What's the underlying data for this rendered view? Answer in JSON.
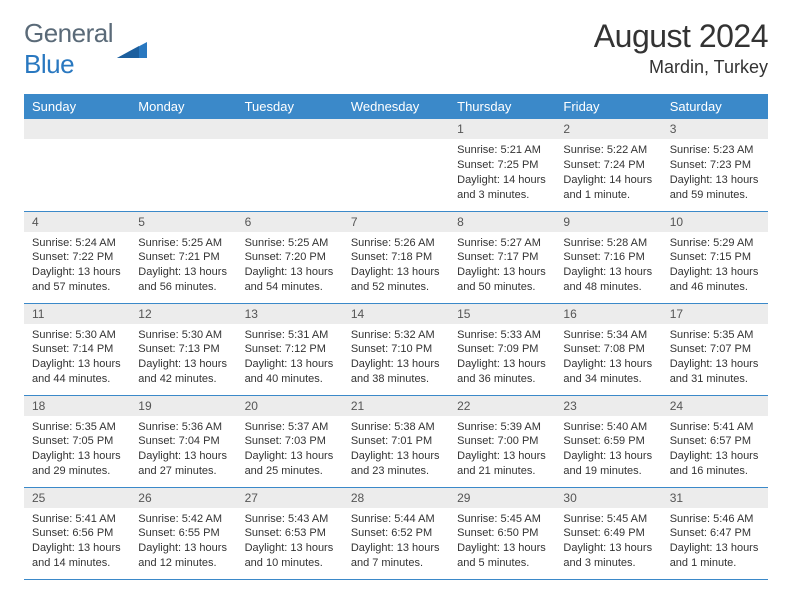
{
  "logo": {
    "text1": "General",
    "text2": "Blue"
  },
  "title": "August 2024",
  "location": "Mardin, Turkey",
  "colors": {
    "header_bg": "#3b89c9",
    "header_fg": "#ffffff",
    "daynum_bg": "#ececec",
    "row_border": "#3b89c9",
    "logo_gray": "#5a6a78",
    "logo_blue": "#2978c0"
  },
  "daynames": [
    "Sunday",
    "Monday",
    "Tuesday",
    "Wednesday",
    "Thursday",
    "Friday",
    "Saturday"
  ],
  "first_weekday": 4,
  "days": [
    {
      "n": "1",
      "sunrise": "5:21 AM",
      "sunset": "7:25 PM",
      "daylight": "14 hours and 3 minutes."
    },
    {
      "n": "2",
      "sunrise": "5:22 AM",
      "sunset": "7:24 PM",
      "daylight": "14 hours and 1 minute."
    },
    {
      "n": "3",
      "sunrise": "5:23 AM",
      "sunset": "7:23 PM",
      "daylight": "13 hours and 59 minutes."
    },
    {
      "n": "4",
      "sunrise": "5:24 AM",
      "sunset": "7:22 PM",
      "daylight": "13 hours and 57 minutes."
    },
    {
      "n": "5",
      "sunrise": "5:25 AM",
      "sunset": "7:21 PM",
      "daylight": "13 hours and 56 minutes."
    },
    {
      "n": "6",
      "sunrise": "5:25 AM",
      "sunset": "7:20 PM",
      "daylight": "13 hours and 54 minutes."
    },
    {
      "n": "7",
      "sunrise": "5:26 AM",
      "sunset": "7:18 PM",
      "daylight": "13 hours and 52 minutes."
    },
    {
      "n": "8",
      "sunrise": "5:27 AM",
      "sunset": "7:17 PM",
      "daylight": "13 hours and 50 minutes."
    },
    {
      "n": "9",
      "sunrise": "5:28 AM",
      "sunset": "7:16 PM",
      "daylight": "13 hours and 48 minutes."
    },
    {
      "n": "10",
      "sunrise": "5:29 AM",
      "sunset": "7:15 PM",
      "daylight": "13 hours and 46 minutes."
    },
    {
      "n": "11",
      "sunrise": "5:30 AM",
      "sunset": "7:14 PM",
      "daylight": "13 hours and 44 minutes."
    },
    {
      "n": "12",
      "sunrise": "5:30 AM",
      "sunset": "7:13 PM",
      "daylight": "13 hours and 42 minutes."
    },
    {
      "n": "13",
      "sunrise": "5:31 AM",
      "sunset": "7:12 PM",
      "daylight": "13 hours and 40 minutes."
    },
    {
      "n": "14",
      "sunrise": "5:32 AM",
      "sunset": "7:10 PM",
      "daylight": "13 hours and 38 minutes."
    },
    {
      "n": "15",
      "sunrise": "5:33 AM",
      "sunset": "7:09 PM",
      "daylight": "13 hours and 36 minutes."
    },
    {
      "n": "16",
      "sunrise": "5:34 AM",
      "sunset": "7:08 PM",
      "daylight": "13 hours and 34 minutes."
    },
    {
      "n": "17",
      "sunrise": "5:35 AM",
      "sunset": "7:07 PM",
      "daylight": "13 hours and 31 minutes."
    },
    {
      "n": "18",
      "sunrise": "5:35 AM",
      "sunset": "7:05 PM",
      "daylight": "13 hours and 29 minutes."
    },
    {
      "n": "19",
      "sunrise": "5:36 AM",
      "sunset": "7:04 PM",
      "daylight": "13 hours and 27 minutes."
    },
    {
      "n": "20",
      "sunrise": "5:37 AM",
      "sunset": "7:03 PM",
      "daylight": "13 hours and 25 minutes."
    },
    {
      "n": "21",
      "sunrise": "5:38 AM",
      "sunset": "7:01 PM",
      "daylight": "13 hours and 23 minutes."
    },
    {
      "n": "22",
      "sunrise": "5:39 AM",
      "sunset": "7:00 PM",
      "daylight": "13 hours and 21 minutes."
    },
    {
      "n": "23",
      "sunrise": "5:40 AM",
      "sunset": "6:59 PM",
      "daylight": "13 hours and 19 minutes."
    },
    {
      "n": "24",
      "sunrise": "5:41 AM",
      "sunset": "6:57 PM",
      "daylight": "13 hours and 16 minutes."
    },
    {
      "n": "25",
      "sunrise": "5:41 AM",
      "sunset": "6:56 PM",
      "daylight": "13 hours and 14 minutes."
    },
    {
      "n": "26",
      "sunrise": "5:42 AM",
      "sunset": "6:55 PM",
      "daylight": "13 hours and 12 minutes."
    },
    {
      "n": "27",
      "sunrise": "5:43 AM",
      "sunset": "6:53 PM",
      "daylight": "13 hours and 10 minutes."
    },
    {
      "n": "28",
      "sunrise": "5:44 AM",
      "sunset": "6:52 PM",
      "daylight": "13 hours and 7 minutes."
    },
    {
      "n": "29",
      "sunrise": "5:45 AM",
      "sunset": "6:50 PM",
      "daylight": "13 hours and 5 minutes."
    },
    {
      "n": "30",
      "sunrise": "5:45 AM",
      "sunset": "6:49 PM",
      "daylight": "13 hours and 3 minutes."
    },
    {
      "n": "31",
      "sunrise": "5:46 AM",
      "sunset": "6:47 PM",
      "daylight": "13 hours and 1 minute."
    }
  ]
}
